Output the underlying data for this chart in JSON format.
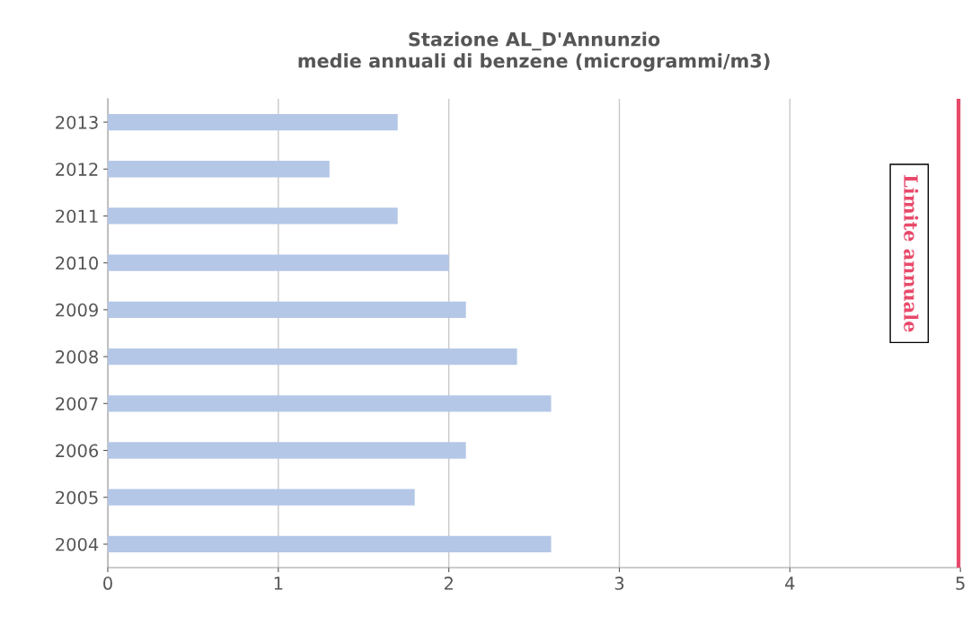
{
  "chart_data": {
    "type": "bar",
    "orientation": "horizontal",
    "title": "Stazione AL_D'Annunzio\nmedie annuali di benzene (microgrammi/m3)",
    "categories": [
      "2013",
      "2012",
      "2011",
      "2010",
      "2009",
      "2008",
      "2007",
      "2006",
      "2005",
      "2004"
    ],
    "values": [
      1.7,
      1.3,
      1.7,
      2.0,
      2.1,
      2.4,
      2.6,
      2.1,
      1.8,
      2.6
    ],
    "color": "#b4c7e7",
    "xlim": [
      0,
      5
    ],
    "xticks": [
      0,
      1,
      2,
      3,
      4,
      5
    ],
    "grid": "x",
    "ref_lines": [
      {
        "axis": "x",
        "value": 5,
        "label": "Limite annuale",
        "color": "#e8496a"
      }
    ]
  }
}
